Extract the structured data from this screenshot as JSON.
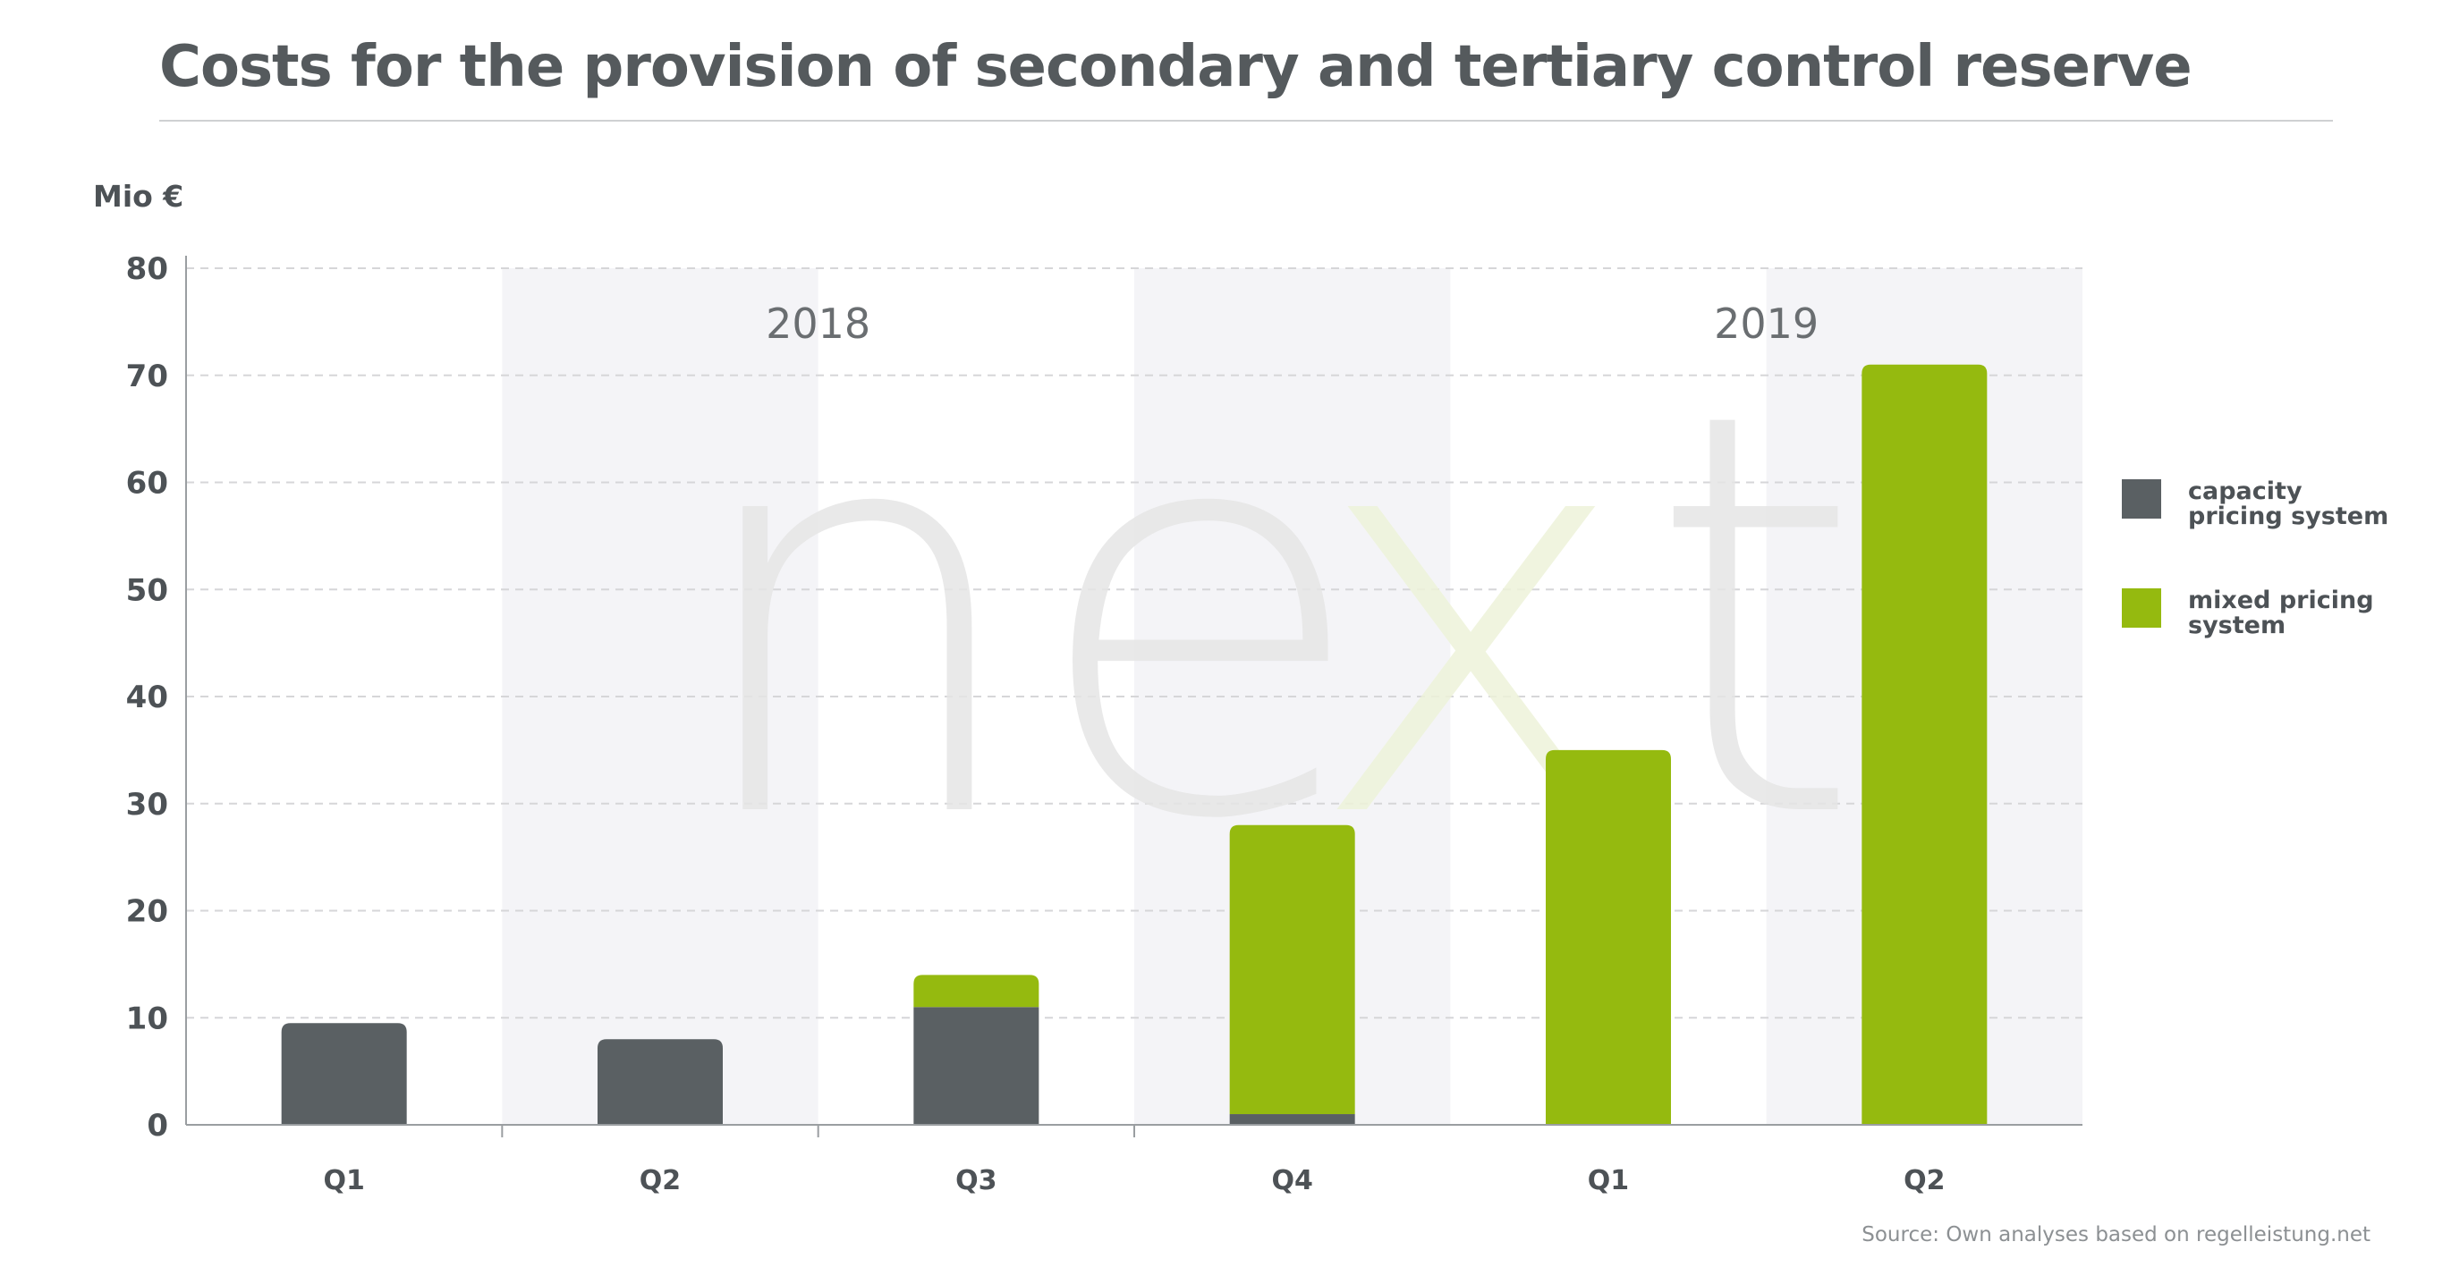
{
  "title": "Costs for the provision of secondary and tertiary control reserve",
  "colors": {
    "capacity": "#5a6063",
    "mixed": "#95ba0f",
    "band": "#f4f4f7",
    "grid": "#d6d6d8",
    "axis": "#9a9ea1",
    "watermark": "#e6e6e6",
    "watermark_accent": "#eef3da"
  },
  "watermark": {
    "text": "next"
  },
  "chart_data": {
    "type": "bar",
    "stacked": true,
    "ylabel": "Mio €",
    "ylim": [
      0,
      80
    ],
    "yticks": [
      0,
      10,
      20,
      30,
      40,
      50,
      60,
      70,
      80
    ],
    "grid": true,
    "categories": [
      "Q1",
      "Q2",
      "Q3",
      "Q4",
      "Q1",
      "Q2"
    ],
    "year_groups": [
      {
        "label": "2018",
        "categories": [
          "Q1",
          "Q2",
          "Q3",
          "Q4"
        ]
      },
      {
        "label": "2019",
        "categories": [
          "Q1",
          "Q2"
        ]
      }
    ],
    "series": [
      {
        "name": "capacity pricing system",
        "color": "#5a6063",
        "values": [
          9.5,
          8,
          11,
          1,
          0,
          0
        ]
      },
      {
        "name": "mixed pricing system",
        "color": "#95ba0f",
        "values": [
          0,
          0,
          3,
          27,
          35,
          71
        ]
      }
    ],
    "legend_position": "right"
  },
  "source": "Source: Own analyses based on regelleistung.net"
}
